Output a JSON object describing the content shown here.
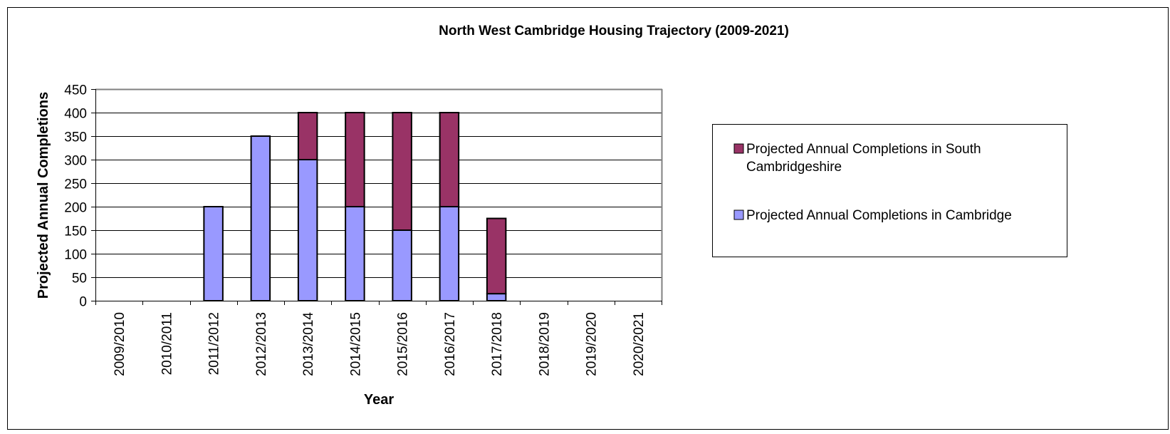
{
  "chart_data": {
    "type": "bar",
    "stacked": true,
    "title": "North West Cambridge Housing Trajectory (2009-2021)",
    "xlabel": "Year",
    "ylabel": "Projected Annual Completions",
    "ylim": [
      0,
      450
    ],
    "yticks": [
      0,
      50,
      100,
      150,
      200,
      250,
      300,
      350,
      400,
      450
    ],
    "ytick_labels": [
      "0",
      "50",
      "100",
      "150",
      "200",
      "250",
      "300",
      "350",
      "400",
      "450"
    ],
    "grid": true,
    "legend_position": "right",
    "categories": [
      "2009/2010",
      "2010/2011",
      "2011/2012",
      "2012/2013",
      "2013/2014",
      "2014/2015",
      "2015/2016",
      "2016/2017",
      "2017/2018",
      "2018/2019",
      "2019/2020",
      "2020/2021"
    ],
    "series": [
      {
        "name": "Projected Annual Completions in Cambridge",
        "color": "#9999ff",
        "values": [
          0,
          0,
          200,
          350,
          300,
          200,
          150,
          200,
          15,
          0,
          0,
          0
        ]
      },
      {
        "name": "Projected Annual Completions in South Cambridgeshire",
        "color": "#993366",
        "values": [
          0,
          0,
          0,
          0,
          100,
          200,
          250,
          200,
          160,
          0,
          0,
          0
        ]
      }
    ],
    "legend": {
      "line1": "Projected Annual Completions in South",
      "line2": "Cambridgeshire",
      "cambridge": "Projected Annual Completions in Cambridge"
    }
  }
}
